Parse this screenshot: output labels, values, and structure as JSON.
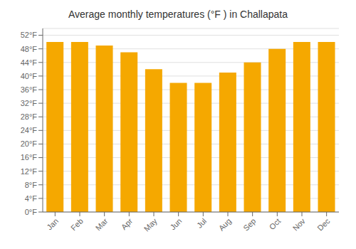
{
  "chart_data": {
    "type": "bar",
    "title": "Average monthly temperatures (°F ) in Challapata",
    "categories": [
      "Jan",
      "Feb",
      "Mar",
      "Apr",
      "May",
      "Jun",
      "Jul",
      "Aug",
      "Sep",
      "Oct",
      "Nov",
      "Dec"
    ],
    "values": [
      50,
      50,
      49,
      47,
      42,
      38,
      38,
      41,
      44,
      48,
      50,
      50
    ],
    "color": "#F5A800",
    "ylim": [
      0,
      54
    ],
    "yticks": [
      {
        "value": 0,
        "label": "0°F"
      },
      {
        "value": 4,
        "label": "4°F"
      },
      {
        "value": 8,
        "label": "8°F"
      },
      {
        "value": 12,
        "label": "12°F"
      },
      {
        "value": 16,
        "label": "16°F"
      },
      {
        "value": 20,
        "label": "20°F"
      },
      {
        "value": 24,
        "label": "24°F"
      },
      {
        "value": 28,
        "label": "28°F"
      },
      {
        "value": 32,
        "label": "32°F"
      },
      {
        "value": 36,
        "label": "36°F"
      },
      {
        "value": 40,
        "label": "40°F"
      },
      {
        "value": 44,
        "label": "44°F"
      },
      {
        "value": 48,
        "label": "48°F"
      },
      {
        "value": 52,
        "label": "52°F"
      }
    ],
    "grid": true
  }
}
